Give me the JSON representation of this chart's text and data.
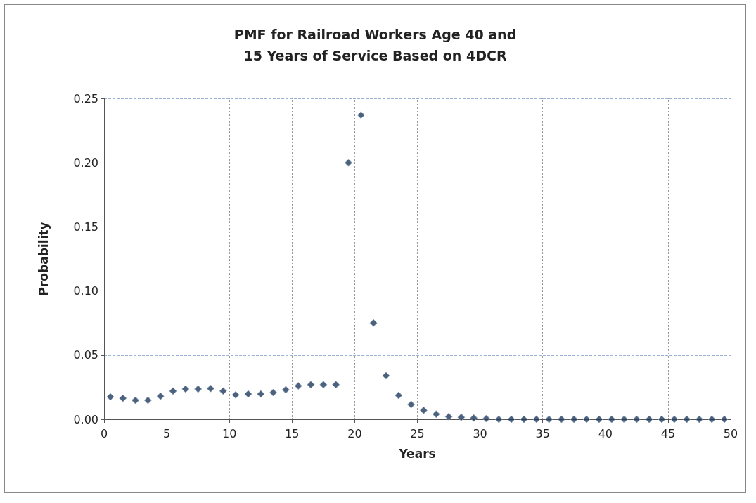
{
  "chart_data": {
    "type": "scatter",
    "title": "PMF for Railroad Workers Age 40 and\n15 Years of Service Based on 4DCR",
    "xlabel": "Years",
    "ylabel": "Probability",
    "x": [
      0.5,
      1.5,
      2.5,
      3.5,
      4.5,
      5.5,
      6.5,
      7.5,
      8.5,
      9.5,
      10.5,
      11.5,
      12.5,
      13.5,
      14.5,
      15.5,
      16.5,
      17.5,
      18.5,
      19.5,
      20.5,
      21.5,
      22.5,
      23.5,
      24.5,
      25.5,
      26.5,
      27.5,
      28.5,
      29.5,
      30.5,
      31.5,
      32.5,
      33.5,
      34.5,
      35.5,
      36.5,
      37.5,
      38.5,
      39.5,
      40.5,
      41.5,
      42.5,
      43.5,
      44.5,
      45.5,
      46.5,
      47.5,
      48.5,
      49.5
    ],
    "series": [
      {
        "color": "#1f3a5a",
        "values": [
          0.0175,
          0.0164,
          0.0148,
          0.0148,
          0.018,
          0.022,
          0.0236,
          0.0236,
          0.024,
          0.022,
          0.019,
          0.0197,
          0.0197,
          0.0208,
          0.023,
          0.026,
          0.027,
          0.027,
          0.027,
          0.2,
          0.237,
          0.075,
          0.034,
          0.0186,
          0.0115,
          0.007,
          0.004,
          0.002,
          0.0015,
          0.001,
          0.0005,
          0,
          0,
          0,
          0,
          0,
          0,
          0,
          0,
          0,
          0,
          0,
          0,
          0,
          0,
          0,
          0,
          0,
          0,
          0
        ]
      }
    ],
    "xlim": [
      0,
      50
    ],
    "xticks": [
      0,
      5,
      10,
      15,
      20,
      25,
      30,
      35,
      40,
      45,
      50
    ],
    "ylim": [
      0,
      0.25
    ],
    "yticks": [
      {
        "value": 0,
        "label": "0.00"
      },
      {
        "value": 0.05,
        "label": "0.05"
      },
      {
        "value": 0.1,
        "label": "0.10"
      },
      {
        "value": 0.15,
        "label": "0.15"
      },
      {
        "value": 0.2,
        "label": "0.20"
      },
      {
        "value": 0.25,
        "label": "0.25"
      }
    ],
    "grid": true,
    "marker": "diamond"
  }
}
